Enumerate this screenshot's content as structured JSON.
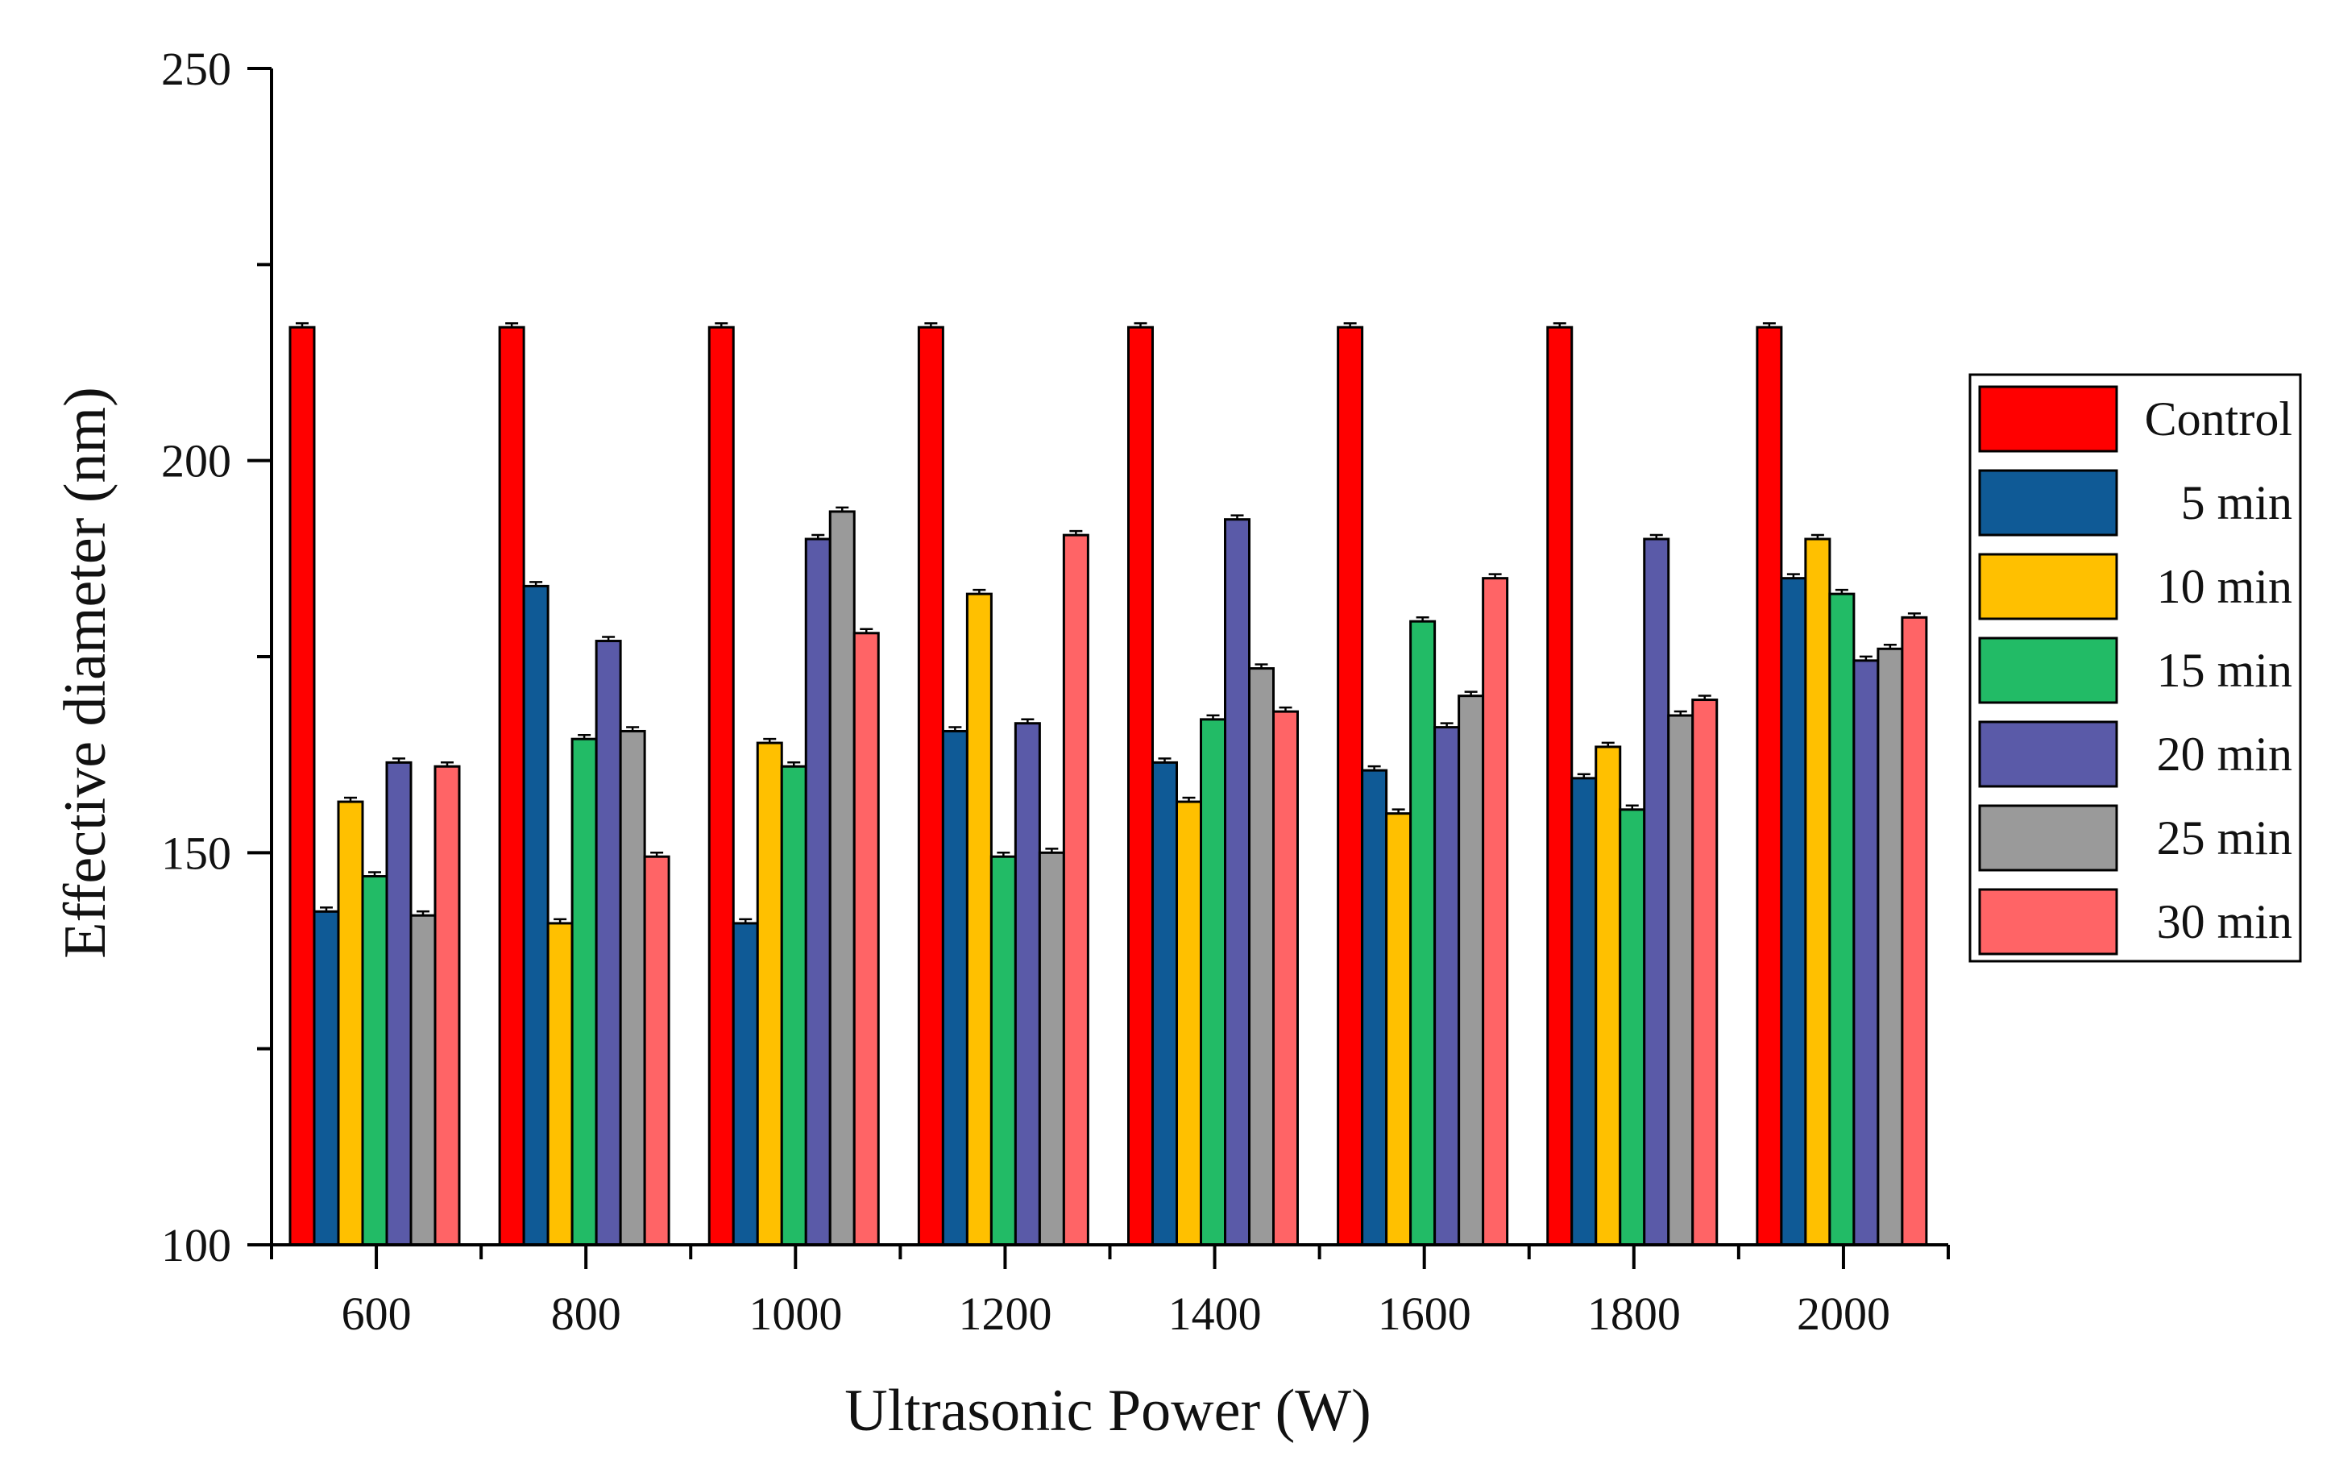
{
  "chart_data": {
    "type": "bar",
    "title": "",
    "xlabel": "Ultrasonic Power (W)",
    "ylabel": "Effective diameter (nm)",
    "ylim": [
      100,
      250
    ],
    "yticks": [
      "100",
      "150",
      "200",
      "250"
    ],
    "categories": [
      "600",
      "800",
      "1000",
      "1200",
      "1400",
      "1600",
      "1800",
      "2000"
    ],
    "legend_position": "right",
    "series": [
      {
        "name": "Control",
        "color": "#ff0000",
        "values": [
          217,
          217,
          217,
          217,
          217,
          217,
          217,
          217
        ]
      },
      {
        "name": "5 min",
        "color": "#0f5a96",
        "values": [
          142.5,
          184,
          141,
          165.5,
          161.5,
          160.5,
          159.5,
          185
        ]
      },
      {
        "name": "10 min",
        "color": "#ffc000",
        "values": [
          156.5,
          141,
          164,
          183,
          156.5,
          155,
          163.5,
          190
        ]
      },
      {
        "name": "15 min",
        "color": "#22bb66",
        "values": [
          147,
          164.5,
          161,
          149.5,
          167,
          179.5,
          155.5,
          183
        ]
      },
      {
        "name": "20 min",
        "color": "#5a5aa8",
        "values": [
          161.5,
          177,
          190,
          166.5,
          192.5,
          166,
          190,
          174.5
        ]
      },
      {
        "name": "25 min",
        "color": "#9a9a9a",
        "values": [
          142,
          165.5,
          193.5,
          150,
          173.5,
          170,
          167.5,
          176
        ]
      },
      {
        "name": "30 min",
        "color": "#ff6466",
        "values": [
          161,
          149.5,
          178,
          190.5,
          168,
          185,
          169.5,
          180
        ]
      }
    ]
  }
}
